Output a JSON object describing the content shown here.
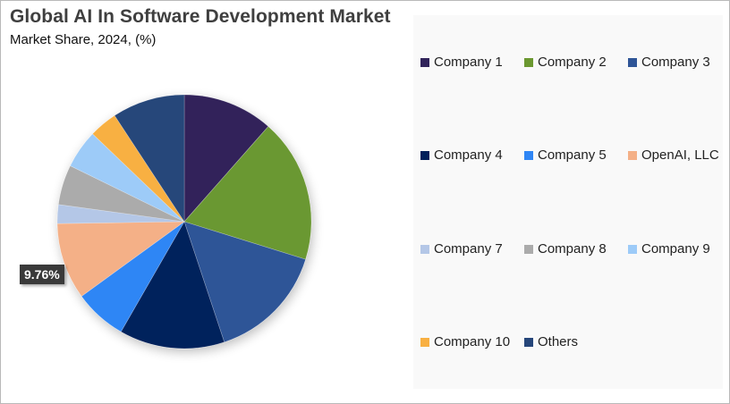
{
  "header": {
    "title": "Global AI In Software Development Market",
    "subtitle": "Market Share, 2024, (%)"
  },
  "data_label": {
    "text": "9.76%",
    "series": "OpenAI, LLC"
  },
  "legend": {
    "items": [
      {
        "label": "Company 1",
        "color": "#31245a"
      },
      {
        "label": "Company 2",
        "color": "#6b9830"
      },
      {
        "label": "Company 3",
        "color": "#2f5597"
      },
      {
        "label": "Company 4",
        "color": "#00205b"
      },
      {
        "label": "Company 5",
        "color": "#2f86f5"
      },
      {
        "label": "OpenAI, LLC",
        "color": "#f4b087"
      },
      {
        "label": "Company 7",
        "color": "#b4c7e7"
      },
      {
        "label": "Company 8",
        "color": "#ababab"
      },
      {
        "label": "Company 9",
        "color": "#9dcbf8"
      },
      {
        "label": "Company 10",
        "color": "#f8b042"
      },
      {
        "label": "Others",
        "color": "#26467a"
      }
    ]
  },
  "chart_data": {
    "type": "pie",
    "title": "Global AI In Software Development Market",
    "subtitle": "Market Share, 2024, (%)",
    "categories": [
      "Company 1",
      "Company 2",
      "Company 3",
      "Company 4",
      "Company 5",
      "OpenAI, LLC",
      "Company 7",
      "Company 8",
      "Company 9",
      "Company 10",
      "Others"
    ],
    "values": [
      11.5,
      18.3,
      15.1,
      13.4,
      6.7,
      9.76,
      2.4,
      5.1,
      4.9,
      3.6,
      9.24
    ],
    "colors": [
      "#31245a",
      "#6b9830",
      "#2f5597",
      "#00205b",
      "#2f86f5",
      "#f4b087",
      "#b4c7e7",
      "#ababab",
      "#9dcbf8",
      "#f8b042",
      "#26467a"
    ],
    "annotations": [
      {
        "category": "OpenAI, LLC",
        "text": "9.76%"
      }
    ],
    "start_angle_deg": 0,
    "direction": "clockwise",
    "legend_position": "right"
  }
}
